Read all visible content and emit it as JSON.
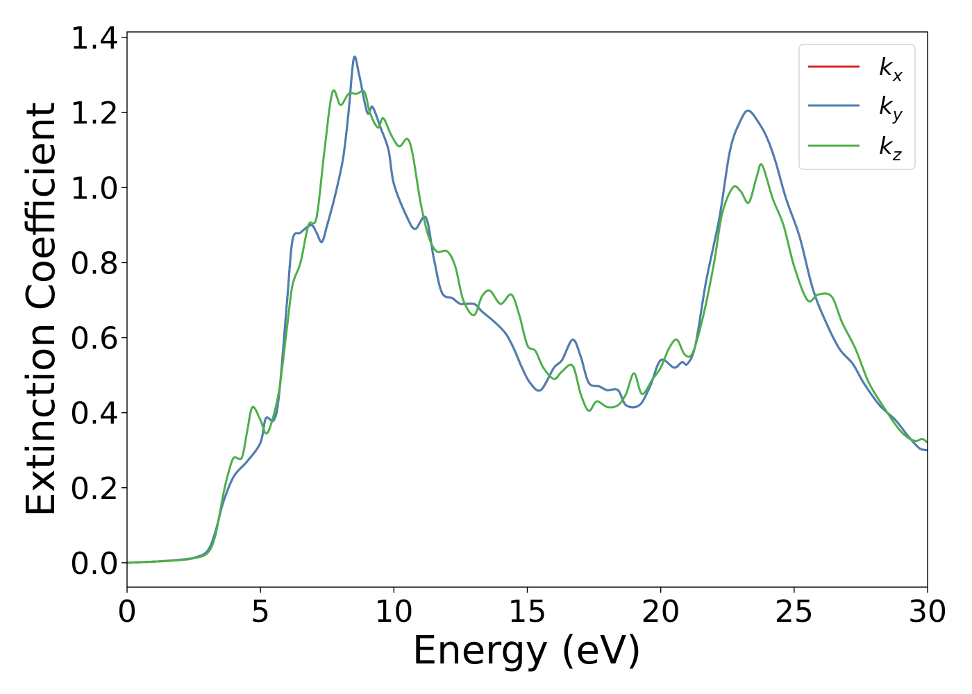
{
  "chart_data": {
    "type": "line",
    "title": "",
    "xlabel": "Energy (eV)",
    "ylabel": "Extinction Coefficient",
    "xlim": [
      0,
      30
    ],
    "ylim": [
      -0.065,
      1.415
    ],
    "xticks": [
      0,
      5,
      10,
      15,
      20,
      25,
      30
    ],
    "xtick_labels": [
      "0",
      "5",
      "10",
      "15",
      "20",
      "25",
      "30"
    ],
    "yticks": [
      0.0,
      0.2,
      0.4,
      0.6,
      0.8,
      1.0,
      1.2,
      1.4
    ],
    "ytick_labels": [
      "0.0",
      "0.2",
      "0.4",
      "0.6",
      "0.8",
      "1.0",
      "1.2",
      "1.4"
    ],
    "grid": false,
    "legend_position": "top-right",
    "series": [
      {
        "name": "k_x",
        "legend_main": "k",
        "legend_sub": "x",
        "color": "#d62728",
        "points": [
          [
            0,
            0
          ],
          [
            1,
            0.003
          ],
          [
            2,
            0.008
          ],
          [
            2.5,
            0.013
          ],
          [
            3,
            0.03
          ],
          [
            3.3,
            0.08
          ],
          [
            3.6,
            0.16
          ],
          [
            4,
            0.23
          ],
          [
            4.5,
            0.27
          ],
          [
            5,
            0.32
          ],
          [
            5.2,
            0.385
          ],
          [
            5.5,
            0.38
          ],
          [
            5.7,
            0.45
          ],
          [
            6,
            0.7
          ],
          [
            6.2,
            0.86
          ],
          [
            6.5,
            0.88
          ],
          [
            6.9,
            0.9
          ],
          [
            7.1,
            0.88
          ],
          [
            7.3,
            0.855
          ],
          [
            7.5,
            0.9
          ],
          [
            7.8,
            0.98
          ],
          [
            8.1,
            1.08
          ],
          [
            8.3,
            1.2
          ],
          [
            8.5,
            1.345
          ],
          [
            8.7,
            1.3
          ],
          [
            9,
            1.2
          ],
          [
            9.2,
            1.215
          ],
          [
            9.5,
            1.16
          ],
          [
            9.8,
            1.1
          ],
          [
            10,
            1.01
          ],
          [
            10.5,
            0.92
          ],
          [
            10.8,
            0.89
          ],
          [
            11.2,
            0.92
          ],
          [
            11.5,
            0.81
          ],
          [
            11.8,
            0.72
          ],
          [
            12.2,
            0.705
          ],
          [
            12.5,
            0.69
          ],
          [
            13,
            0.69
          ],
          [
            13.3,
            0.67
          ],
          [
            13.8,
            0.64
          ],
          [
            14.2,
            0.61
          ],
          [
            14.5,
            0.57
          ],
          [
            14.8,
            0.52
          ],
          [
            15.1,
            0.48
          ],
          [
            15.5,
            0.46
          ],
          [
            16,
            0.52
          ],
          [
            16.3,
            0.54
          ],
          [
            16.7,
            0.595
          ],
          [
            17,
            0.55
          ],
          [
            17.3,
            0.48
          ],
          [
            17.7,
            0.47
          ],
          [
            18,
            0.46
          ],
          [
            18.4,
            0.46
          ],
          [
            18.7,
            0.42
          ],
          [
            19.2,
            0.42
          ],
          [
            19.6,
            0.47
          ],
          [
            20,
            0.54
          ],
          [
            20.5,
            0.52
          ],
          [
            20.8,
            0.535
          ],
          [
            21,
            0.53
          ],
          [
            21.3,
            0.58
          ],
          [
            21.7,
            0.75
          ],
          [
            22.2,
            0.92
          ],
          [
            22.6,
            1.1
          ],
          [
            23,
            1.18
          ],
          [
            23.3,
            1.205
          ],
          [
            23.7,
            1.17
          ],
          [
            24,
            1.13
          ],
          [
            24.3,
            1.07
          ],
          [
            24.7,
            0.97
          ],
          [
            25.2,
            0.87
          ],
          [
            25.7,
            0.73
          ],
          [
            26.2,
            0.64
          ],
          [
            26.7,
            0.57
          ],
          [
            27.2,
            0.53
          ],
          [
            27.6,
            0.48
          ],
          [
            28.2,
            0.42
          ],
          [
            28.8,
            0.38
          ],
          [
            29.3,
            0.335
          ],
          [
            29.7,
            0.305
          ],
          [
            30,
            0.3
          ]
        ]
      },
      {
        "name": "k_y",
        "legend_main": "k",
        "legend_sub": "y",
        "color": "#4a7fb5",
        "points": [
          [
            0,
            0
          ],
          [
            1,
            0.003
          ],
          [
            2,
            0.008
          ],
          [
            2.5,
            0.013
          ],
          [
            3,
            0.03
          ],
          [
            3.3,
            0.08
          ],
          [
            3.6,
            0.16
          ],
          [
            4,
            0.23
          ],
          [
            4.5,
            0.27
          ],
          [
            5,
            0.32
          ],
          [
            5.2,
            0.385
          ],
          [
            5.5,
            0.38
          ],
          [
            5.7,
            0.45
          ],
          [
            6,
            0.7
          ],
          [
            6.2,
            0.86
          ],
          [
            6.5,
            0.88
          ],
          [
            6.9,
            0.9
          ],
          [
            7.1,
            0.88
          ],
          [
            7.3,
            0.855
          ],
          [
            7.5,
            0.9
          ],
          [
            7.8,
            0.98
          ],
          [
            8.1,
            1.08
          ],
          [
            8.3,
            1.2
          ],
          [
            8.5,
            1.345
          ],
          [
            8.7,
            1.3
          ],
          [
            9,
            1.2
          ],
          [
            9.2,
            1.215
          ],
          [
            9.5,
            1.16
          ],
          [
            9.8,
            1.1
          ],
          [
            10,
            1.01
          ],
          [
            10.5,
            0.92
          ],
          [
            10.8,
            0.89
          ],
          [
            11.2,
            0.92
          ],
          [
            11.5,
            0.81
          ],
          [
            11.8,
            0.72
          ],
          [
            12.2,
            0.705
          ],
          [
            12.5,
            0.69
          ],
          [
            13,
            0.69
          ],
          [
            13.3,
            0.67
          ],
          [
            13.8,
            0.64
          ],
          [
            14.2,
            0.61
          ],
          [
            14.5,
            0.57
          ],
          [
            14.8,
            0.52
          ],
          [
            15.1,
            0.48
          ],
          [
            15.5,
            0.46
          ],
          [
            16,
            0.52
          ],
          [
            16.3,
            0.54
          ],
          [
            16.7,
            0.595
          ],
          [
            17,
            0.55
          ],
          [
            17.3,
            0.48
          ],
          [
            17.7,
            0.47
          ],
          [
            18,
            0.46
          ],
          [
            18.4,
            0.46
          ],
          [
            18.7,
            0.42
          ],
          [
            19.2,
            0.42
          ],
          [
            19.6,
            0.47
          ],
          [
            20,
            0.54
          ],
          [
            20.5,
            0.52
          ],
          [
            20.8,
            0.535
          ],
          [
            21,
            0.53
          ],
          [
            21.3,
            0.58
          ],
          [
            21.7,
            0.75
          ],
          [
            22.2,
            0.92
          ],
          [
            22.6,
            1.1
          ],
          [
            23,
            1.18
          ],
          [
            23.3,
            1.205
          ],
          [
            23.7,
            1.17
          ],
          [
            24,
            1.13
          ],
          [
            24.3,
            1.07
          ],
          [
            24.7,
            0.97
          ],
          [
            25.2,
            0.87
          ],
          [
            25.7,
            0.73
          ],
          [
            26.2,
            0.64
          ],
          [
            26.7,
            0.57
          ],
          [
            27.2,
            0.53
          ],
          [
            27.6,
            0.48
          ],
          [
            28.2,
            0.42
          ],
          [
            28.8,
            0.38
          ],
          [
            29.3,
            0.335
          ],
          [
            29.7,
            0.305
          ],
          [
            30,
            0.3
          ]
        ]
      },
      {
        "name": "k_z",
        "legend_main": "k",
        "legend_sub": "z",
        "color": "#4daf4a",
        "points": [
          [
            0,
            0
          ],
          [
            1,
            0.003
          ],
          [
            2,
            0.007
          ],
          [
            2.5,
            0.012
          ],
          [
            3,
            0.025
          ],
          [
            3.3,
            0.07
          ],
          [
            3.6,
            0.18
          ],
          [
            3.8,
            0.24
          ],
          [
            4,
            0.28
          ],
          [
            4.3,
            0.28
          ],
          [
            4.5,
            0.35
          ],
          [
            4.7,
            0.415
          ],
          [
            5,
            0.38
          ],
          [
            5.2,
            0.345
          ],
          [
            5.4,
            0.37
          ],
          [
            5.7,
            0.46
          ],
          [
            6,
            0.63
          ],
          [
            6.2,
            0.74
          ],
          [
            6.5,
            0.8
          ],
          [
            6.8,
            0.9
          ],
          [
            7.1,
            0.92
          ],
          [
            7.4,
            1.1
          ],
          [
            7.7,
            1.255
          ],
          [
            8,
            1.22
          ],
          [
            8.3,
            1.25
          ],
          [
            8.6,
            1.25
          ],
          [
            8.9,
            1.255
          ],
          [
            9.1,
            1.2
          ],
          [
            9.4,
            1.16
          ],
          [
            9.6,
            1.185
          ],
          [
            9.9,
            1.14
          ],
          [
            10.2,
            1.11
          ],
          [
            10.5,
            1.13
          ],
          [
            10.7,
            1.09
          ],
          [
            11,
            0.96
          ],
          [
            11.3,
            0.87
          ],
          [
            11.6,
            0.83
          ],
          [
            12,
            0.83
          ],
          [
            12.3,
            0.79
          ],
          [
            12.6,
            0.7
          ],
          [
            13,
            0.66
          ],
          [
            13.3,
            0.71
          ],
          [
            13.6,
            0.725
          ],
          [
            14,
            0.69
          ],
          [
            14.4,
            0.715
          ],
          [
            14.7,
            0.66
          ],
          [
            15,
            0.58
          ],
          [
            15.3,
            0.565
          ],
          [
            15.6,
            0.52
          ],
          [
            16,
            0.49
          ],
          [
            16.3,
            0.51
          ],
          [
            16.7,
            0.525
          ],
          [
            17,
            0.45
          ],
          [
            17.3,
            0.405
          ],
          [
            17.6,
            0.43
          ],
          [
            18,
            0.415
          ],
          [
            18.4,
            0.42
          ],
          [
            18.7,
            0.45
          ],
          [
            19,
            0.505
          ],
          [
            19.3,
            0.45
          ],
          [
            19.7,
            0.49
          ],
          [
            20,
            0.52
          ],
          [
            20.3,
            0.57
          ],
          [
            20.6,
            0.595
          ],
          [
            20.9,
            0.555
          ],
          [
            21.2,
            0.56
          ],
          [
            21.6,
            0.66
          ],
          [
            22,
            0.8
          ],
          [
            22.3,
            0.93
          ],
          [
            22.7,
            1.0
          ],
          [
            23,
            0.99
          ],
          [
            23.3,
            0.96
          ],
          [
            23.6,
            1.03
          ],
          [
            23.8,
            1.06
          ],
          [
            24.2,
            0.97
          ],
          [
            24.6,
            0.9
          ],
          [
            25,
            0.79
          ],
          [
            25.5,
            0.7
          ],
          [
            25.9,
            0.715
          ],
          [
            26.4,
            0.71
          ],
          [
            26.8,
            0.64
          ],
          [
            27.3,
            0.57
          ],
          [
            27.8,
            0.48
          ],
          [
            28.4,
            0.41
          ],
          [
            29,
            0.35
          ],
          [
            29.5,
            0.325
          ],
          [
            29.8,
            0.33
          ],
          [
            30,
            0.32
          ]
        ]
      }
    ]
  }
}
